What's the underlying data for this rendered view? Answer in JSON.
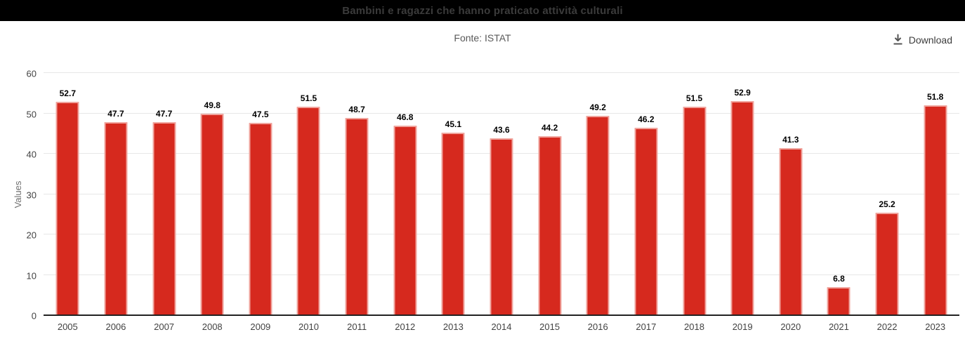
{
  "header": {
    "title": "Bambini e ragazzi che hanno praticato attività culturali"
  },
  "subtitle": "Fonte: ISTAT",
  "toolbar": {
    "download_label": "Download"
  },
  "colors": {
    "header_bg": "#000000",
    "header_text": "#3b3b3b",
    "bar": "#d6291e",
    "bar_border": "#f0a49d",
    "gridline": "#e7e7e7",
    "axis_line": "#222222",
    "tick_text": "#424242",
    "axis_title_text": "#707070",
    "icon": "#555555"
  },
  "chart_data": {
    "type": "bar",
    "title": "Bambini e ragazzi che hanno praticato attività culturali",
    "source": "Fonte: ISTAT",
    "categories": [
      "2005",
      "2006",
      "2007",
      "2008",
      "2009",
      "2010",
      "2011",
      "2012",
      "2013",
      "2014",
      "2015",
      "2016",
      "2017",
      "2018",
      "2019",
      "2020",
      "2021",
      "2022",
      "2023"
    ],
    "values": [
      52.7,
      47.7,
      47.7,
      49.8,
      47.5,
      51.5,
      48.7,
      46.8,
      45.1,
      43.6,
      44.2,
      49.2,
      46.2,
      51.5,
      52.9,
      41.3,
      6.8,
      25.2,
      51.8
    ],
    "xlabel": "",
    "ylabel": "Values",
    "ylim": [
      0,
      60
    ],
    "yticks": [
      0,
      10,
      20,
      30,
      40,
      50,
      60
    ],
    "grid": true,
    "legend": false,
    "data_labels": true
  }
}
